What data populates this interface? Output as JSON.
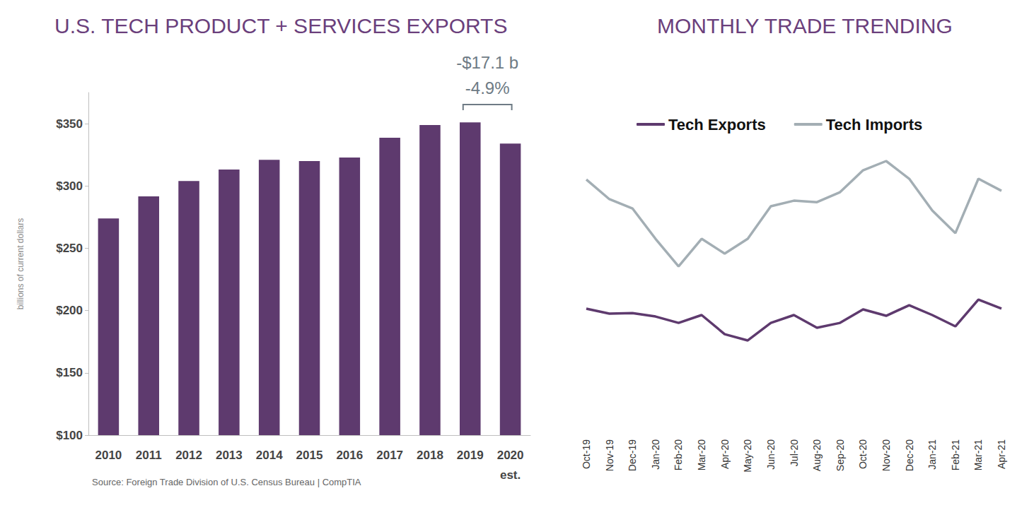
{
  "chart_data": [
    {
      "type": "bar",
      "title": "U.S. TECH PRODUCT + SERVICES EXPORTS",
      "y_label": "billions of current dollars",
      "source": "Source: Foreign Trade Division of U.S. Census Bureau | CompTIA",
      "categories": [
        "2010",
        "2011",
        "2012",
        "2013",
        "2014",
        "2015",
        "2016",
        "2017",
        "2018",
        "2019",
        "2020\nest."
      ],
      "values": [
        274,
        291.6,
        304,
        313.2,
        321,
        320,
        322.8,
        338.7,
        348.9,
        351.1,
        334.1
      ],
      "color": "#5e3a6e",
      "ylim": [
        100,
        375
      ],
      "yticks": [
        {
          "value": 100,
          "label": "$100"
        },
        {
          "value": 150,
          "label": "$150"
        },
        {
          "value": 200,
          "label": "$200"
        },
        {
          "value": 250,
          "label": "$250"
        },
        {
          "value": 300,
          "label": "$300"
        },
        {
          "value": 350,
          "label": "$350"
        }
      ],
      "grid": false,
      "annotation": {
        "lines": [
          "-$17.1 b",
          "-4.9%"
        ],
        "span": [
          "2019",
          "2020\nest."
        ]
      }
    },
    {
      "type": "line",
      "title": "MONTHLY TRADE TRENDING",
      "categories": [
        "Oct-19",
        "Nov-19",
        "Dec-19",
        "Jan-20",
        "Feb-20",
        "Mar-20",
        "Apr-20",
        "May-20",
        "Jun-20",
        "Jul-20",
        "Aug-20",
        "Sep-20",
        "Oct-20",
        "Nov-20",
        "Dec-20",
        "Jan-21",
        "Feb-21",
        "Mar-21",
        "Apr-21"
      ],
      "series": [
        {
          "name": "Tech Exports",
          "color": "#5e3a6e",
          "values": [
            201.5,
            197.5,
            198,
            195.2,
            190.1,
            196.4,
            181,
            176,
            190.1,
            196.4,
            186.2,
            190.1,
            200.9,
            195.8,
            204.3,
            196.4,
            187.3,
            208.8,
            201.5
          ]
        },
        {
          "name": "Tech Imports",
          "color": "#a3aeb4",
          "values": [
            305.2,
            289.4,
            282,
            257.6,
            235.5,
            257.6,
            245.7,
            257.6,
            283.7,
            288.2,
            287,
            295,
            312.6,
            320,
            305.8,
            280.3,
            262.1,
            305.8,
            296.1
          ]
        }
      ],
      "ylim": [
        100,
        375
      ],
      "tick_labels": "x",
      "grid": false,
      "legend": "top"
    }
  ]
}
